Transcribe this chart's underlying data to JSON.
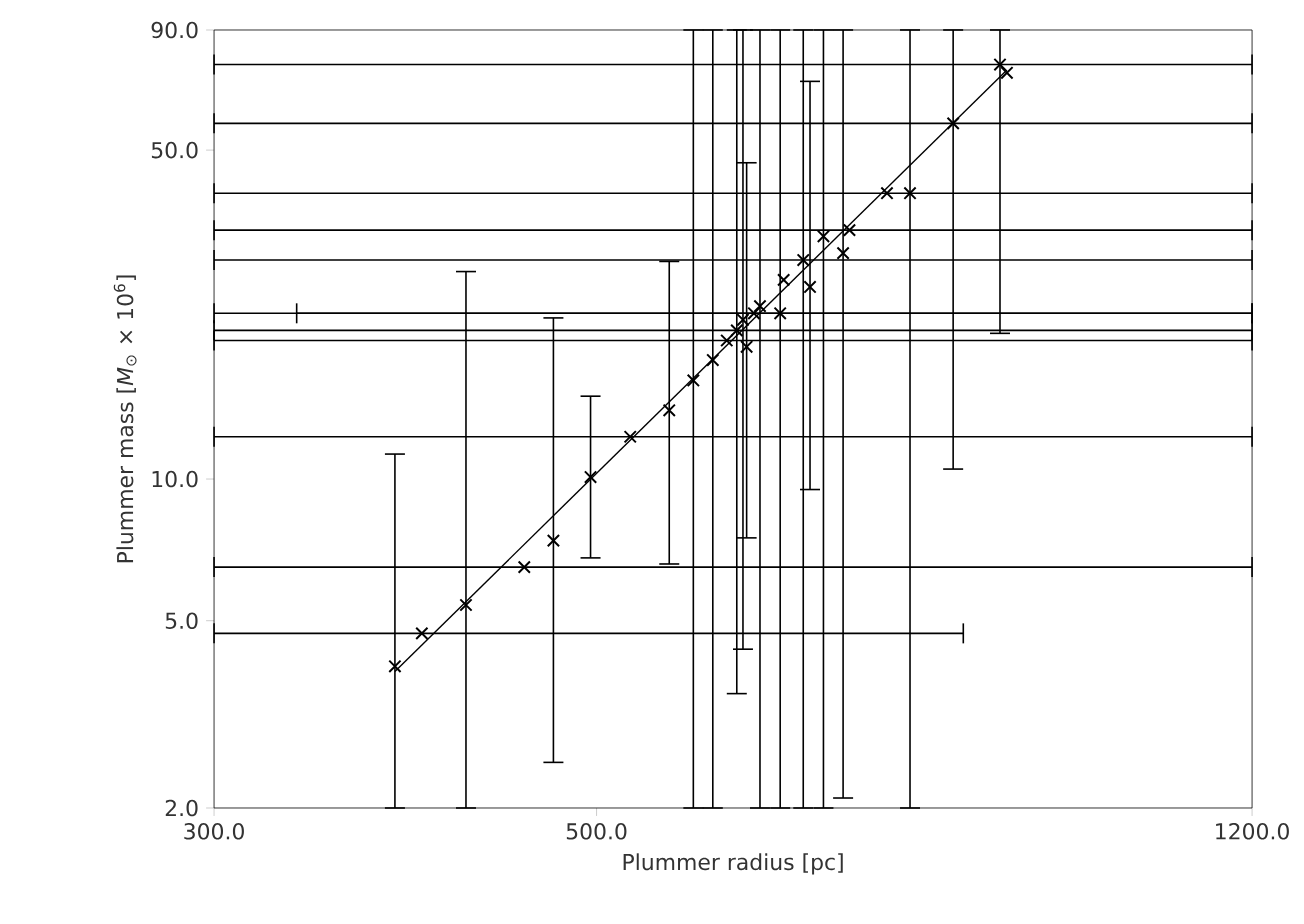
{
  "chart_data": {
    "type": "scatter",
    "xlabel": "Plummer radius [pc]",
    "ylabel": "Plummer mass [*M*$_{⊙}$ × 10$^{6}$]",
    "log": "xy",
    "xlim": [
      300,
      1200
    ],
    "ylim": [
      2,
      90
    ],
    "xticks": [
      {
        "value": 300,
        "label": "300.0"
      },
      {
        "value": 500,
        "label": "500.0"
      },
      {
        "value": 1200,
        "label": "1200.0"
      }
    ],
    "yticks": [
      {
        "value": 2,
        "label": "2.0"
      },
      {
        "value": 5,
        "label": "5.0"
      },
      {
        "value": 10,
        "label": "10.0"
      },
      {
        "value": 50,
        "label": "50.0"
      },
      {
        "value": 90,
        "label": "90.0"
      }
    ],
    "grid": false,
    "series": [
      {
        "color": "#000000",
        "marker": "cross",
        "x": [
          382,
          396,
          420,
          454,
          472,
          496,
          523,
          551,
          569,
          584,
          595,
          603,
          608,
          611,
          617,
          622,
          639,
          642,
          659,
          665,
          677,
          695,
          701,
          737,
          760,
          805,
          857,
          865
        ],
        "values": [
          4.0,
          4.7,
          5.4,
          6.5,
          7.4,
          10.1,
          12.3,
          14.0,
          16.2,
          17.9,
          19.7,
          20.7,
          21.8,
          19.1,
          22.5,
          23.3,
          22.5,
          26.5,
          29.2,
          25.6,
          32.8,
          30.2,
          33.8,
          40.5,
          40.5,
          57,
          76,
          73
        ],
        "errors": [
          [
            2,
            11.3
          ],
          null,
          [
            2,
            27.6
          ],
          null,
          [
            2.5,
            22
          ],
          [
            6.8,
            15
          ],
          null,
          [
            6.6,
            29
          ],
          [
            2,
            90
          ],
          [
            2,
            90
          ],
          null,
          [
            3.5,
            90
          ],
          [
            4.35,
            90
          ],
          [
            7.5,
            47
          ],
          null,
          [
            2,
            90
          ],
          [
            2,
            90
          ],
          null,
          [
            2,
            90
          ],
          [
            9.5,
            70
          ],
          [
            2,
            90
          ],
          [
            2.1,
            90
          ],
          null,
          null,
          [
            2,
            90
          ],
          [
            10.5,
            90
          ],
          [
            20.4,
            90
          ],
          null
        ],
        "xerrors": [
          null,
          [
            300,
            816
          ],
          null,
          [
            300,
            1200
          ],
          null,
          null,
          [
            300,
            1200
          ],
          null,
          null,
          null,
          [
            300,
            1200
          ],
          [
            300,
            1200
          ],
          null,
          null,
          [
            300,
            1200
          ],
          null,
          [
            335,
            1200
          ],
          null,
          [
            300,
            1200
          ],
          null,
          null,
          null,
          [
            300,
            1200
          ],
          [
            300,
            1200
          ],
          null,
          [
            300,
            1200
          ],
          [
            300,
            1200
          ],
          null
        ]
      },
      {
        "type": "line",
        "color": "#000000",
        "marker": "none",
        "line_style": "solid",
        "x": [
          382,
          865
        ],
        "values": [
          3.9,
          74
        ]
      }
    ]
  }
}
